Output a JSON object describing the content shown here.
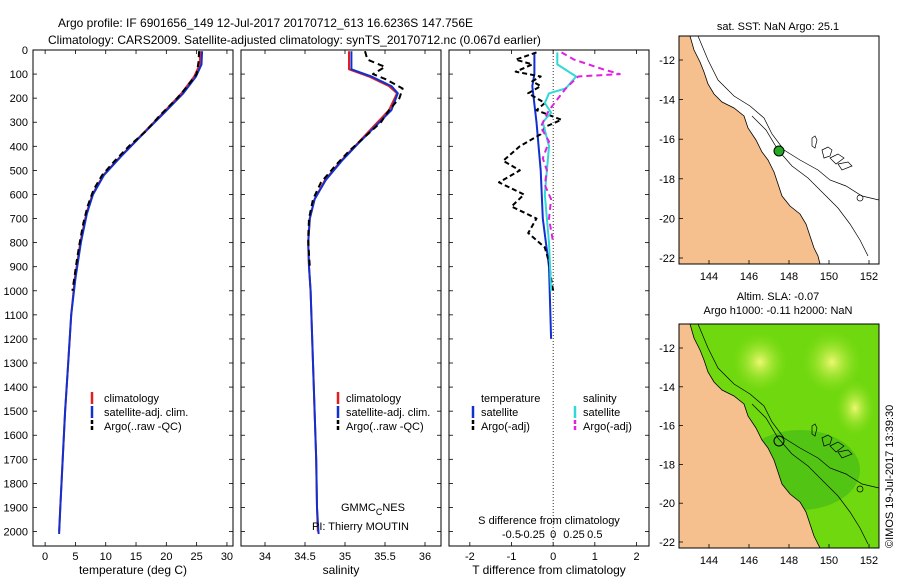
{
  "header": {
    "title_line1": "Argo profile: IF 6901656_149 12-Jul-2017 20170712_613 16.6236S 147.756E",
    "title_line2": "Climatology: CARS2009. Satellite-adjusted climatology: synTS_20170712.nc (0.067d earlier)"
  },
  "side_stamp": "©IMOS 19-Jul-2017 13:39:30",
  "colors": {
    "climatology": "#e02020",
    "satellite": "#1030d0",
    "argo": "#000000",
    "sat_salinity": "#30d8d8",
    "argo_salinity": "#e020e0",
    "land": "#f5c08e",
    "point": "#22aa22"
  },
  "chart_data": [
    {
      "id": "temp",
      "type": "line",
      "xlabel": "temperature (deg C)",
      "xlim": [
        -2,
        31
      ],
      "xticks": [
        0,
        5,
        10,
        15,
        20,
        25,
        30
      ],
      "ylim": [
        0,
        2060
      ],
      "yticks": [
        0,
        100,
        200,
        300,
        400,
        500,
        600,
        700,
        800,
        900,
        1000,
        1100,
        1200,
        1300,
        1400,
        1500,
        1600,
        1700,
        1800,
        1900,
        2000
      ],
      "legend": [
        "climatology",
        "satellite-adj. clim.",
        "Argo(..raw -QC)"
      ],
      "series": [
        {
          "name": "climatology",
          "color_key": "climatology",
          "dash": "",
          "points": [
            [
              25.6,
              5
            ],
            [
              25.5,
              60
            ],
            [
              24.6,
              110
            ],
            [
              22.5,
              180
            ],
            [
              19.5,
              260
            ],
            [
              16,
              350
            ],
            [
              12.5,
              440
            ],
            [
              9.6,
              520
            ],
            [
              7.8,
              600
            ],
            [
              6.8,
              680
            ],
            [
              5.8,
              800
            ],
            [
              4.9,
              950
            ],
            [
              4.3,
              1100
            ],
            [
              3.8,
              1300
            ],
            [
              3.3,
              1500
            ],
            [
              2.9,
              1700
            ],
            [
              2.5,
              1900
            ],
            [
              2.3,
              2000
            ]
          ]
        },
        {
          "name": "satellite-adj. clim.",
          "color_key": "satellite",
          "dash": "",
          "points": [
            [
              25.9,
              5
            ],
            [
              25.8,
              60
            ],
            [
              24.9,
              110
            ],
            [
              22.8,
              180
            ],
            [
              19.7,
              260
            ],
            [
              16.1,
              350
            ],
            [
              12.6,
              440
            ],
            [
              9.7,
              520
            ],
            [
              7.9,
              600
            ],
            [
              6.9,
              680
            ],
            [
              5.9,
              800
            ],
            [
              5,
              950
            ],
            [
              4.3,
              1100
            ],
            [
              3.8,
              1300
            ],
            [
              3.3,
              1500
            ],
            [
              2.9,
              1700
            ],
            [
              2.5,
              1900
            ],
            [
              2.3,
              2010
            ]
          ]
        },
        {
          "name": "Argo(..raw -QC)",
          "color_key": "argo",
          "dash": "6,4",
          "points": [
            [
              25.4,
              5
            ],
            [
              25.3,
              50
            ],
            [
              25,
              100
            ],
            [
              23.5,
              150
            ],
            [
              21.8,
              200
            ],
            [
              19,
              270
            ],
            [
              16.5,
              340
            ],
            [
              13.8,
              400
            ],
            [
              11.5,
              460
            ],
            [
              9.4,
              520
            ],
            [
              8,
              580
            ],
            [
              7,
              650
            ],
            [
              6.3,
              720
            ],
            [
              5.7,
              800
            ],
            [
              5.2,
              880
            ],
            [
              4.8,
              950
            ],
            [
              4.5,
              1000
            ]
          ]
        }
      ]
    },
    {
      "id": "sal",
      "type": "line",
      "xlabel": "salinity",
      "xlim": [
        33.7,
        36.2
      ],
      "xticks": [
        34,
        34.5,
        35,
        35.5,
        36
      ],
      "ylim": [
        0,
        2060
      ],
      "legend": [
        "climatology",
        "satellite-adj. clim.",
        "Argo(..raw -QC)"
      ],
      "series": [
        {
          "name": "climatology",
          "color_key": "climatology",
          "dash": "",
          "points": [
            [
              35.05,
              5
            ],
            [
              35.05,
              80
            ],
            [
              35.3,
              110
            ],
            [
              35.55,
              150
            ],
            [
              35.65,
              180
            ],
            [
              35.55,
              250
            ],
            [
              35.35,
              320
            ],
            [
              35.15,
              390
            ],
            [
              34.95,
              460
            ],
            [
              34.75,
              540
            ],
            [
              34.62,
              620
            ],
            [
              34.56,
              700
            ],
            [
              34.54,
              800
            ],
            [
              34.55,
              900
            ],
            [
              34.57,
              1000
            ],
            [
              34.58,
              1100
            ],
            [
              34.6,
              1300
            ],
            [
              34.62,
              1500
            ],
            [
              34.64,
              1700
            ],
            [
              34.65,
              1900
            ],
            [
              34.66,
              2000
            ]
          ]
        },
        {
          "name": "satellite-adj. clim.",
          "color_key": "satellite",
          "dash": "",
          "points": [
            [
              35.08,
              5
            ],
            [
              35.08,
              80
            ],
            [
              35.33,
              110
            ],
            [
              35.58,
              150
            ],
            [
              35.66,
              180
            ],
            [
              35.58,
              250
            ],
            [
              35.37,
              320
            ],
            [
              35.16,
              390
            ],
            [
              34.96,
              460
            ],
            [
              34.76,
              540
            ],
            [
              34.62,
              620
            ],
            [
              34.56,
              700
            ],
            [
              34.54,
              800
            ],
            [
              34.55,
              900
            ],
            [
              34.57,
              1000
            ],
            [
              34.58,
              1100
            ],
            [
              34.6,
              1300
            ],
            [
              34.62,
              1500
            ],
            [
              34.64,
              1700
            ],
            [
              34.65,
              1900
            ],
            [
              34.67,
              2010
            ]
          ]
        },
        {
          "name": "Argo(..raw -QC)",
          "color_key": "argo",
          "dash": "6,4",
          "points": [
            [
              35.25,
              5
            ],
            [
              35.28,
              40
            ],
            [
              35.5,
              70
            ],
            [
              35.35,
              100
            ],
            [
              35.5,
              120
            ],
            [
              35.72,
              160
            ],
            [
              35.68,
              200
            ],
            [
              35.55,
              250
            ],
            [
              35.45,
              300
            ],
            [
              35.25,
              360
            ],
            [
              35.05,
              420
            ],
            [
              34.88,
              480
            ],
            [
              34.7,
              550
            ],
            [
              34.6,
              620
            ],
            [
              34.55,
              700
            ],
            [
              34.54,
              780
            ],
            [
              34.55,
              850
            ],
            [
              34.56,
              900
            ]
          ]
        }
      ]
    },
    {
      "id": "diff",
      "type": "line",
      "xlabel": "T difference from climatology",
      "xlabel_top": "S difference from climatology",
      "xlim": [
        -2.5,
        2.3
      ],
      "xticks": [
        -2,
        -1,
        0,
        1,
        2
      ],
      "xticks_top_values": [
        -1,
        -0.5,
        0,
        0.5,
        1
      ],
      "xticks_top_labels": [
        "-0.5",
        "-0.25",
        "0",
        "0.25",
        "0.5"
      ],
      "ylim": [
        0,
        2060
      ],
      "legend": {
        "temperature_title": "temperature",
        "salinity_title": "salinity",
        "sat_label": "satellite",
        "argo_label": "Argo(-adj)"
      },
      "series": [
        {
          "name": "temperature satellite",
          "color_key": "satellite",
          "dash": "",
          "points": [
            [
              -0.45,
              10
            ],
            [
              -0.45,
              100
            ],
            [
              -0.5,
              150
            ],
            [
              -0.4,
              300
            ],
            [
              -0.3,
              500
            ],
            [
              -0.25,
              700
            ],
            [
              -0.1,
              900
            ],
            [
              -0.05,
              1200
            ]
          ]
        },
        {
          "name": "temperature Argo(-adj)",
          "color_key": "argo",
          "dash": "5,3",
          "points": [
            [
              -0.4,
              10
            ],
            [
              -0.9,
              40
            ],
            [
              -0.5,
              60
            ],
            [
              -0.9,
              90
            ],
            [
              -0.3,
              110
            ],
            [
              -0.5,
              130
            ],
            [
              -0.3,
              150
            ],
            [
              -0.6,
              180
            ],
            [
              -0.2,
              220
            ],
            [
              -0.4,
              250
            ],
            [
              0.2,
              290
            ],
            [
              -0.2,
              320
            ],
            [
              -0.3,
              350
            ],
            [
              -0.8,
              400
            ],
            [
              -1.2,
              460
            ],
            [
              -0.8,
              500
            ],
            [
              -1.3,
              550
            ],
            [
              -0.7,
              600
            ],
            [
              -1.0,
              650
            ],
            [
              -0.4,
              700
            ],
            [
              -0.6,
              760
            ],
            [
              -0.2,
              820
            ],
            [
              -0.1,
              880
            ],
            [
              -0.05,
              950
            ],
            [
              0,
              1000
            ]
          ]
        },
        {
          "name": "salinity satellite",
          "color_key": "sat_salinity",
          "dash": "",
          "points": [
            [
              0.1,
              10
            ],
            [
              0.1,
              60
            ],
            [
              0.55,
              110
            ],
            [
              0.3,
              160
            ],
            [
              -0.1,
              180
            ],
            [
              -0.2,
              220
            ],
            [
              -0.05,
              260
            ],
            [
              -0.25,
              300
            ],
            [
              -0.1,
              400
            ],
            [
              -0.2,
              600
            ],
            [
              -0.1,
              800
            ],
            [
              -0.05,
              1000
            ]
          ]
        },
        {
          "name": "salinity Argo(-adj)",
          "color_key": "argo_salinity",
          "dash": "6,4",
          "points": [
            [
              0.2,
              10
            ],
            [
              0.5,
              40
            ],
            [
              1.2,
              80
            ],
            [
              1.6,
              100
            ],
            [
              0.6,
              110
            ],
            [
              0.3,
              160
            ],
            [
              -0.1,
              250
            ],
            [
              -0.3,
              320
            ],
            [
              -0.1,
              380
            ],
            [
              -0.25,
              450
            ],
            [
              -0.15,
              500
            ],
            [
              -0.2,
              560
            ],
            [
              -0.05,
              620
            ],
            [
              -0.1,
              700
            ],
            [
              0,
              800
            ]
          ]
        }
      ]
    }
  ],
  "panels": {
    "stamp_line1": "GMMC",
    "stamp_sub": "C",
    "stamp_line1_end": "NES",
    "stamp_line2": "PI: Thierry MOUTIN"
  },
  "map_sst": {
    "title": "sat. SST: NaN Argo: 25.1",
    "xticks": [
      "144",
      "146",
      "148",
      "150",
      "152"
    ],
    "yticks": [
      "-12",
      "-14",
      "-16",
      "-18",
      "-20",
      "-22"
    ]
  },
  "map_sla": {
    "title_line1": "Altim. SLA: -0.07",
    "title_line2": "Argo h1000: -0.11 h2000: NaN",
    "xticks": [
      "144",
      "146",
      "148",
      "150",
      "152"
    ],
    "yticks": [
      "-12",
      "-14",
      "-16",
      "-18",
      "-20",
      "-22"
    ]
  }
}
